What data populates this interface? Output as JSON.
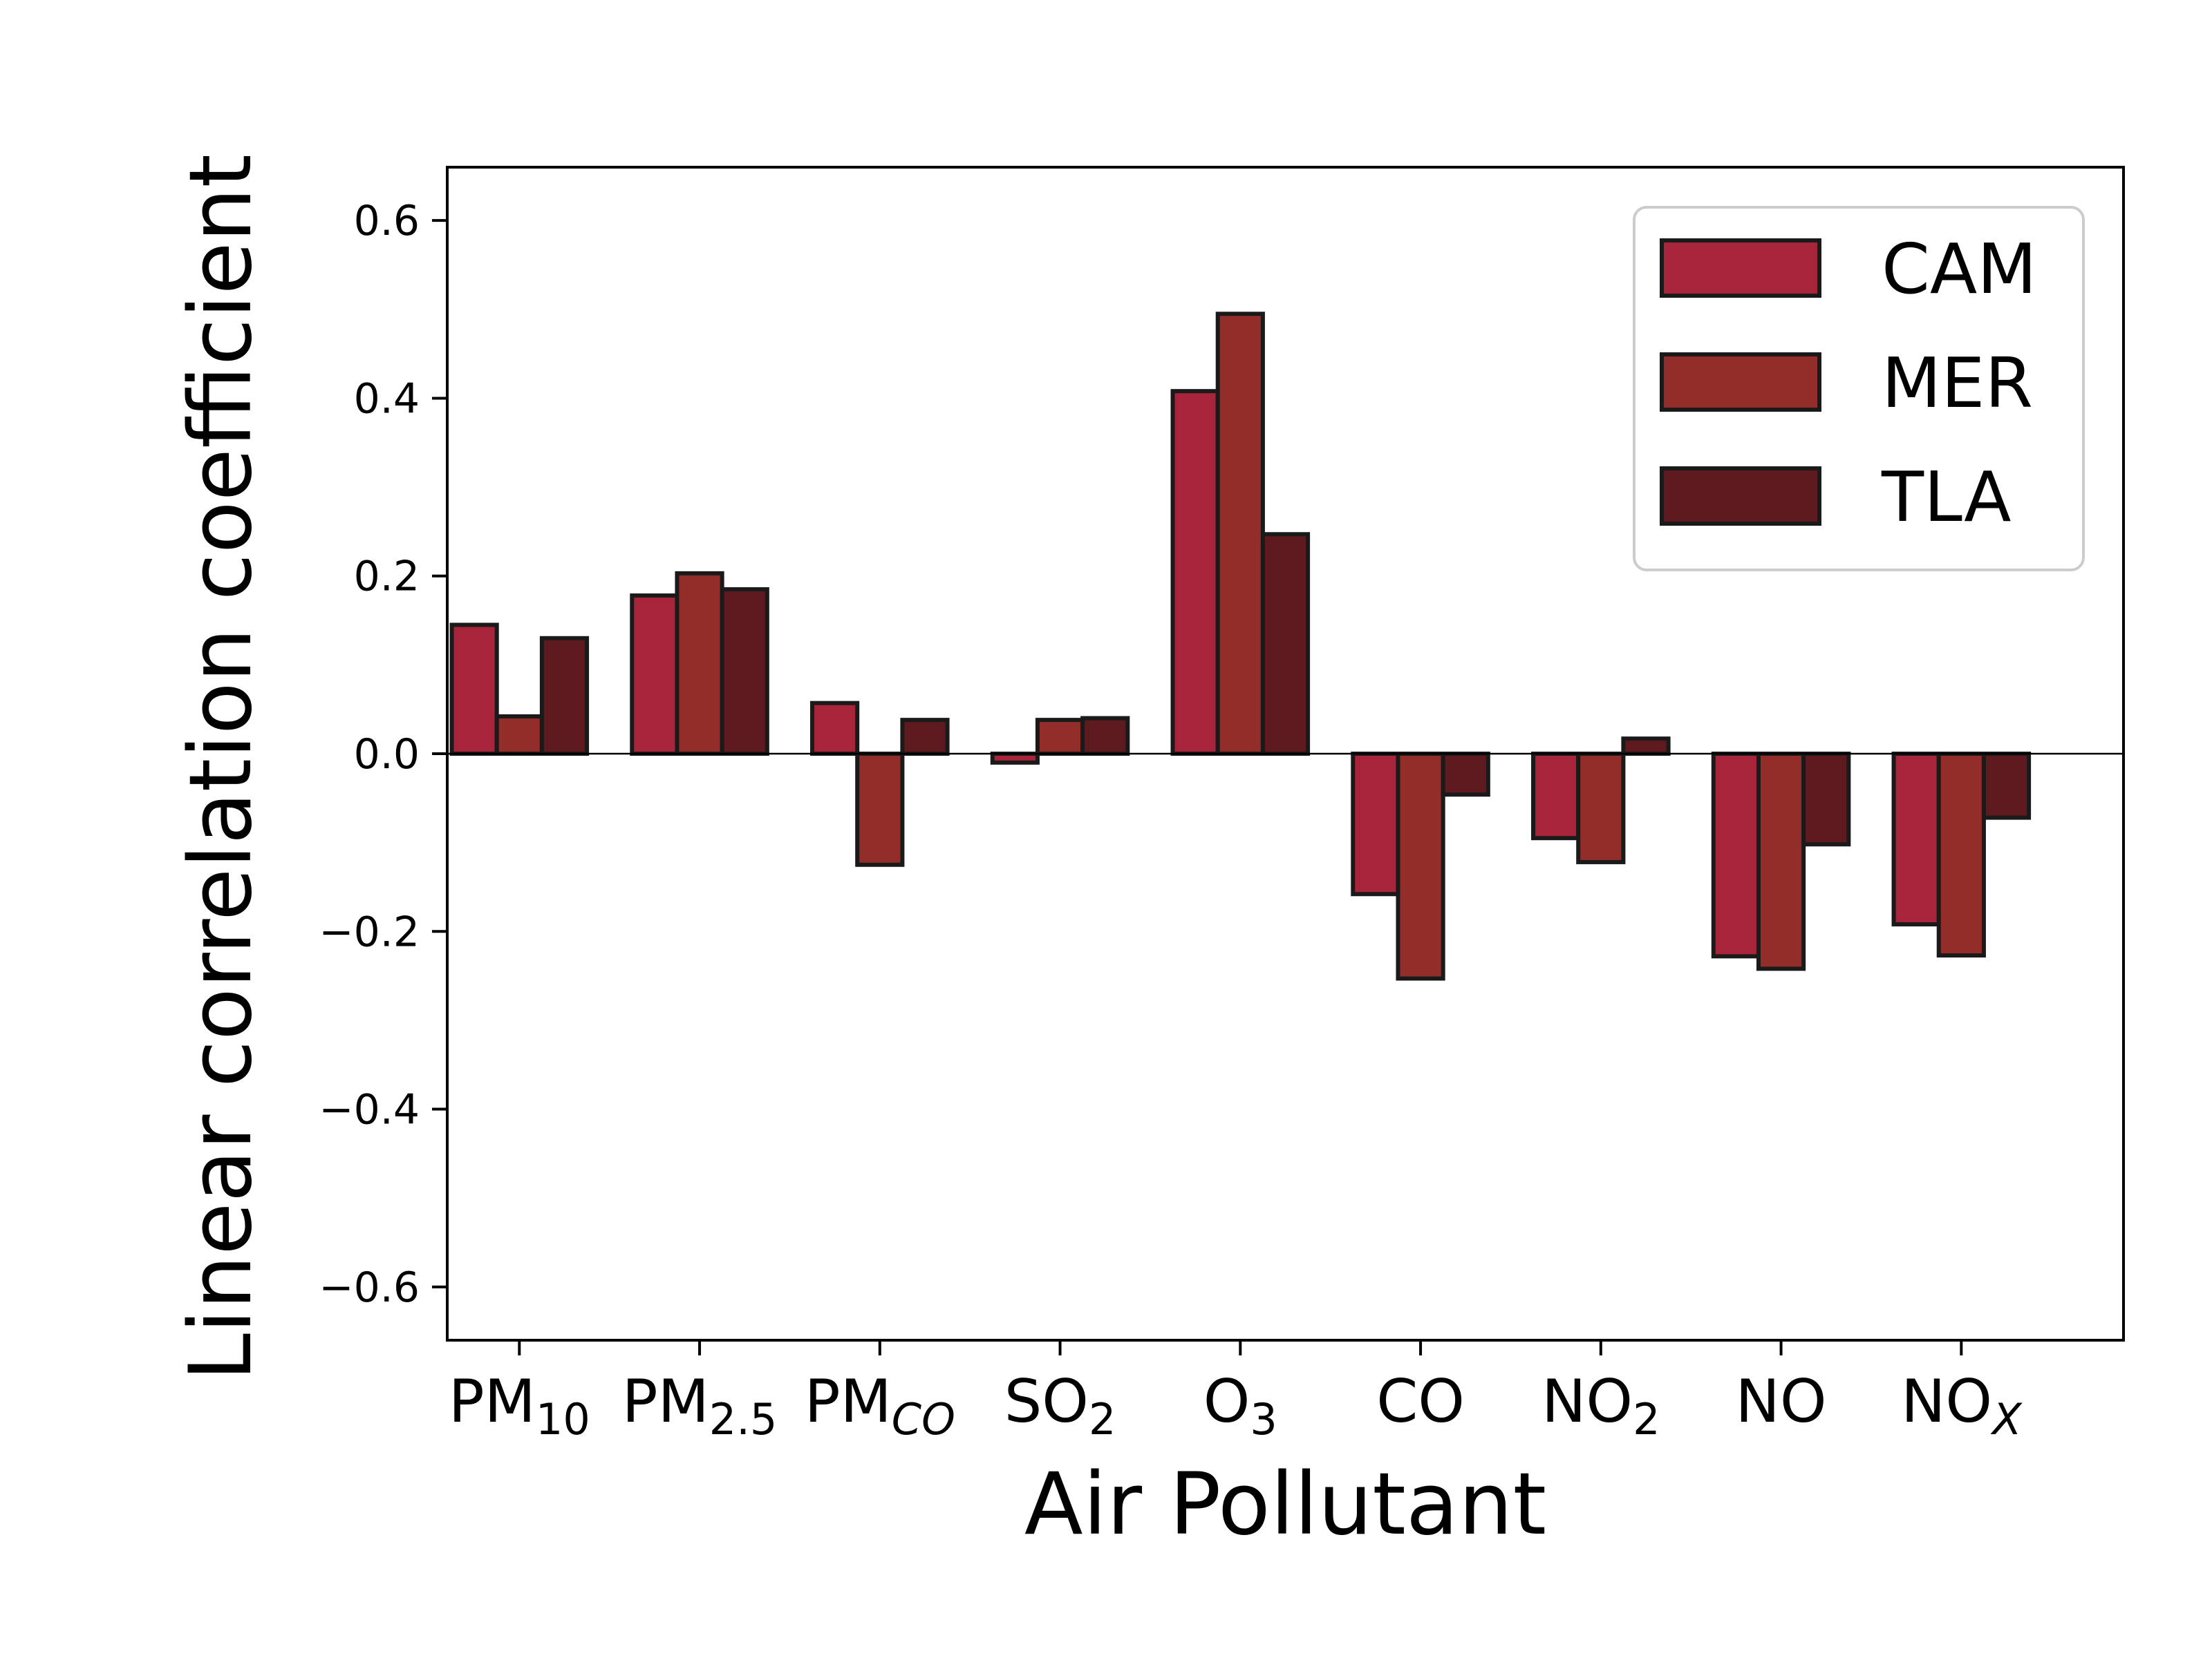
{
  "chart_data": {
    "type": "bar",
    "title": "",
    "xlabel": "Air Pollutant",
    "ylabel": "Linear correlation coefficient",
    "ylim": [
      -0.66,
      0.66
    ],
    "yticks": [
      {
        "value": -0.6,
        "label": "−0.6"
      },
      {
        "value": -0.4,
        "label": "−0.4"
      },
      {
        "value": -0.2,
        "label": "−0.2"
      },
      {
        "value": 0.0,
        "label": "0.0"
      },
      {
        "value": 0.2,
        "label": "0.2"
      },
      {
        "value": 0.4,
        "label": "0.4"
      },
      {
        "value": 0.6,
        "label": "0.6"
      }
    ],
    "categories": [
      {
        "base": "PM",
        "sub": "10",
        "sub_italic": false
      },
      {
        "base": "PM",
        "sub": "2.5",
        "sub_italic": false
      },
      {
        "base": "PM",
        "sub": "CO",
        "sub_italic": true
      },
      {
        "base": "SO",
        "sub": "2",
        "sub_italic": false
      },
      {
        "base": "O",
        "sub": "3",
        "sub_italic": false
      },
      {
        "base": "CO",
        "sub": "",
        "sub_italic": false
      },
      {
        "base": "NO",
        "sub": "2",
        "sub_italic": false
      },
      {
        "base": "NO",
        "sub": "",
        "sub_italic": false
      },
      {
        "base": "NO",
        "sub": "X",
        "sub_italic": true
      }
    ],
    "series": [
      {
        "name": "CAM",
        "color": "#a8243a",
        "values": [
          0.145,
          0.178,
          0.057,
          -0.01,
          0.408,
          -0.158,
          -0.095,
          -0.228,
          -0.192
        ]
      },
      {
        "name": "MER",
        "color": "#922d2a",
        "values": [
          0.042,
          0.203,
          -0.125,
          0.038,
          0.495,
          -0.253,
          -0.122,
          -0.242,
          -0.227
        ]
      },
      {
        "name": "TLA",
        "color": "#5e1a1e",
        "values": [
          0.13,
          0.185,
          0.038,
          0.04,
          0.247,
          -0.046,
          0.017,
          -0.102,
          -0.072
        ]
      }
    ],
    "zero_line": true,
    "grid": false,
    "legend": {
      "position": "top-right",
      "entries": [
        "CAM",
        "MER",
        "TLA"
      ]
    }
  }
}
